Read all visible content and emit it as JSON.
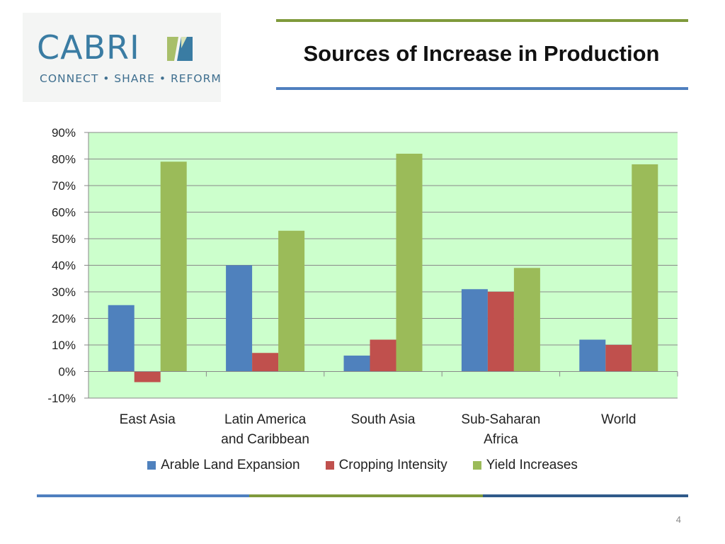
{
  "slide": {
    "title": "Sources of Increase in Production",
    "page_number": "4"
  },
  "logo": {
    "wordmark": "CABRI",
    "tagline": "CONNECT • SHARE • REFORM"
  },
  "colors": {
    "plot_background": "#ccffcc",
    "rule_olive": "#7f9a3c",
    "rule_blue": "#4f7fbf",
    "rule_navy": "#2f5a8a",
    "logo_blue": "#3a7ca3",
    "logo_green": "#a8bf6a"
  },
  "chart_data": {
    "type": "bar",
    "categories": [
      "East Asia",
      "Latin America and Caribbean",
      "South Asia",
      "Sub-Saharan Africa",
      "World"
    ],
    "category_lines": [
      [
        "East Asia"
      ],
      [
        "Latin America",
        "and Caribbean"
      ],
      [
        "South Asia"
      ],
      [
        "Sub-Saharan",
        "Africa"
      ],
      [
        "World"
      ]
    ],
    "series": [
      {
        "name": "Arable Land Expansion",
        "color": "#4f81bd",
        "values": [
          25,
          40,
          6,
          31,
          12
        ]
      },
      {
        "name": "Cropping Intensity",
        "color": "#c0504d",
        "values": [
          -4,
          7,
          12,
          30,
          10
        ]
      },
      {
        "name": "Yield Increases",
        "color": "#9bbb59",
        "values": [
          79,
          53,
          82,
          39,
          78
        ]
      }
    ],
    "ylim": [
      -10,
      90
    ],
    "yticks": [
      -10,
      0,
      10,
      20,
      30,
      40,
      50,
      60,
      70,
      80,
      90
    ],
    "y_tick_labels": [
      "-10%",
      "0%",
      "10%",
      "20%",
      "30%",
      "40%",
      "50%",
      "60%",
      "70%",
      "80%",
      "90%"
    ],
    "grid": true,
    "legend_position": "bottom",
    "title": "",
    "xlabel": "",
    "ylabel": ""
  }
}
